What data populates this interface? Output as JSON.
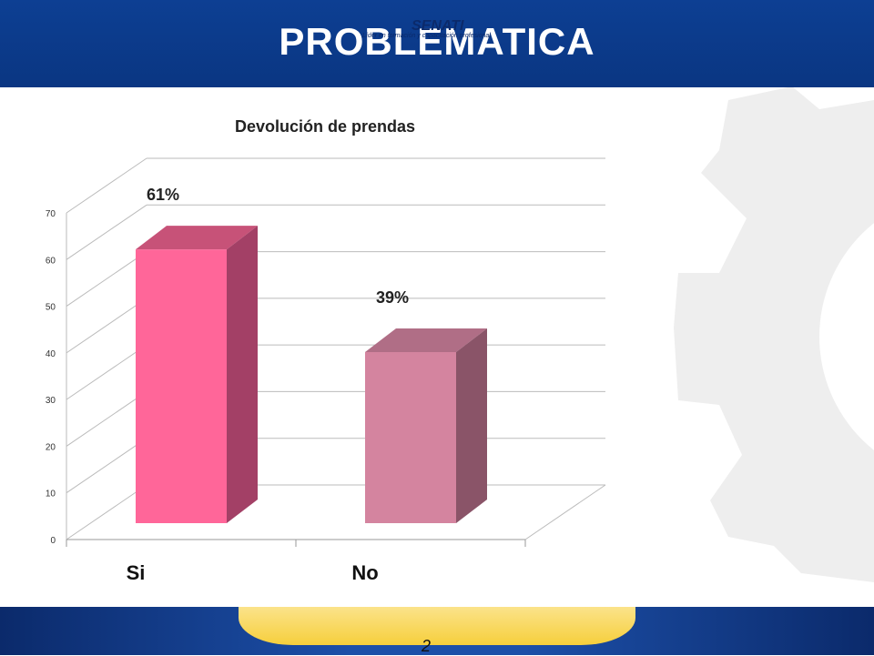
{
  "slide": {
    "title": "PROBLEMATICA",
    "page_number": "2"
  },
  "footer": {
    "logo_text": "SENATI",
    "tagline": "Líder en formación y capacitación profesional"
  },
  "colors": {
    "header_blue": "#0c3c8f",
    "bar_si": "#ff6699",
    "bar_no": "#d4849f"
  },
  "chart_data": {
    "type": "bar",
    "title": "Devolución de prendas",
    "categories": [
      "Si",
      "No"
    ],
    "values": [
      61,
      39
    ],
    "data_labels": [
      "61%",
      "39%"
    ],
    "ylim": [
      0,
      70
    ],
    "yticks": [
      0,
      10,
      20,
      30,
      40,
      50,
      60,
      70
    ],
    "grid": true,
    "three_d": true
  }
}
